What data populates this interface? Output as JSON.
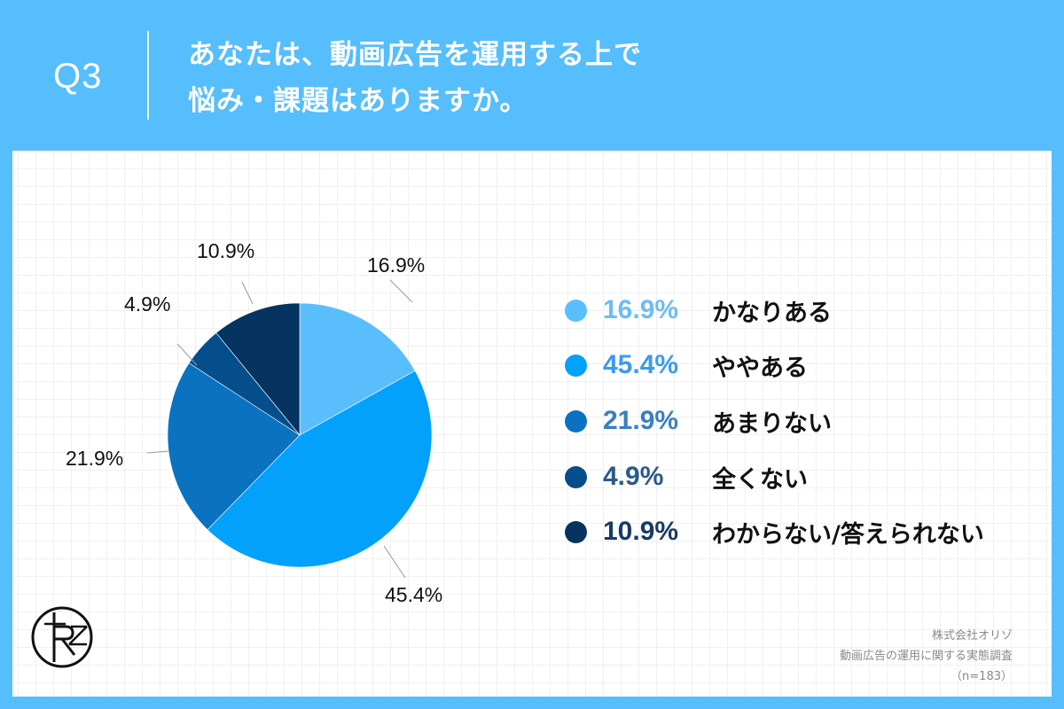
{
  "header": {
    "question_number": "Q3",
    "title_line1": "あなたは、動画広告を運用する上で",
    "title_line2": "悩み・課題はありますか。"
  },
  "credit": {
    "company": "株式会社オリゾ",
    "survey": "動画広告の運用に関する実態調査",
    "sample": "（n=183）"
  },
  "logo": {
    "icon": "rz-circle-logo"
  },
  "colors": {
    "background": "#56BEFC",
    "panel": "#FFFFFF"
  },
  "chart_data": {
    "type": "pie",
    "title": "あなたは、動画広告を運用する上で悩み・課題はありますか。",
    "categories": [
      "かなりある",
      "ややある",
      "あまりない",
      "全くない",
      "わからない/答えられない"
    ],
    "values": [
      16.9,
      45.4,
      21.9,
      4.9,
      10.9
    ],
    "labels": [
      "16.9%",
      "45.4%",
      "21.9%",
      "4.9%",
      "10.9%"
    ],
    "slice_colors": [
      "#5BBEFC",
      "#03A0FC",
      "#0A72C0",
      "#054E8C",
      "#04345F"
    ],
    "legend_text_colors": [
      "#6ABDF7",
      "#3A9BF0",
      "#3A7FC0",
      "#2A5A8C",
      "#1A3A66"
    ],
    "start_angle": "12 o'clock, clockwise",
    "legend_position": "right",
    "sample_size": 183
  },
  "legend": {
    "items": [
      {
        "pct": "16.9%",
        "label": "かなりある"
      },
      {
        "pct": "45.4%",
        "label": "ややある"
      },
      {
        "pct": "21.9%",
        "label": "あまりない"
      },
      {
        "pct": "4.9%",
        "label": "全くない"
      },
      {
        "pct": "10.9%",
        "label": "わからない/答えられない"
      }
    ]
  },
  "pie_labels": {
    "items": [
      {
        "text": "16.9%"
      },
      {
        "text": "45.4%"
      },
      {
        "text": "21.9%"
      },
      {
        "text": "4.9%"
      },
      {
        "text": "10.9%"
      }
    ]
  }
}
